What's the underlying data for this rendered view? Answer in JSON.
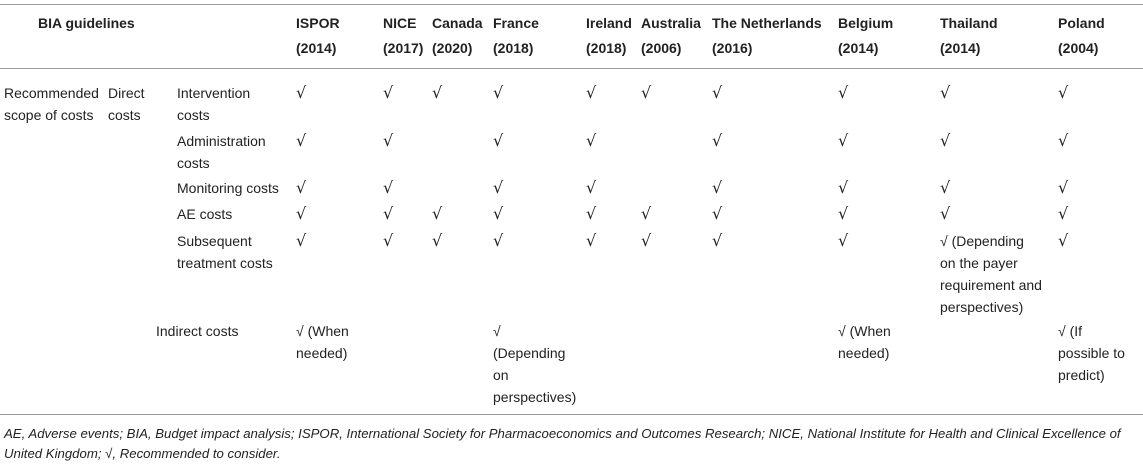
{
  "table": {
    "header": {
      "title": "BIA guidelines",
      "columns": [
        {
          "name": "ISPOR",
          "year": "(2014)"
        },
        {
          "name": "NICE",
          "year": "(2017)"
        },
        {
          "name": "Canada",
          "year": "(2020)"
        },
        {
          "name": "France",
          "year": "(2018)"
        },
        {
          "name": "Ireland",
          "year": "(2018)"
        },
        {
          "name": "Australia",
          "year": "(2006)"
        },
        {
          "name": "The Netherlands",
          "year": "(2016)"
        },
        {
          "name": "Belgium",
          "year": "(2014)"
        },
        {
          "name": "Thailand",
          "year": "(2014)"
        },
        {
          "name": "Poland",
          "year": "(2004)"
        }
      ]
    },
    "category": "Recommended\nscope of costs",
    "check_mark": "√",
    "groups": [
      {
        "label": "Direct\ncosts",
        "rows": [
          {
            "label": "Intervention\ncosts",
            "cells": [
              "√",
              "√",
              "√",
              "√",
              "√",
              "√",
              "√",
              "√",
              "√",
              "√"
            ]
          },
          {
            "label": "Administration\ncosts",
            "cells": [
              "√",
              "√",
              "",
              "√",
              "√",
              "",
              "√",
              "√",
              "√",
              "√"
            ]
          },
          {
            "label": "Monitoring costs",
            "cells": [
              "√",
              "√",
              "",
              "√",
              "√",
              "",
              "√",
              "√",
              "√",
              "√"
            ]
          },
          {
            "label": "AE costs",
            "cells": [
              "√",
              "√",
              "√",
              "√",
              "√",
              "√",
              "√",
              "√",
              "√",
              "√"
            ]
          },
          {
            "label": "Subsequent\ntreatment costs",
            "cells": [
              "√",
              "√",
              "√",
              "√",
              "√",
              "√",
              "√",
              "√",
              "√ (Depending\non the payer\nrequirement and\nperspectives)",
              "√"
            ]
          }
        ]
      },
      {
        "label": "Indirect costs",
        "rows": [
          {
            "label": "",
            "cells": [
              "√ (When\nneeded)",
              "",
              "",
              "√\n(Depending\non\nperspectives)",
              "",
              "",
              "",
              "√ (When\nneeded)",
              "",
              "√ (If\npossible to\npredict)"
            ]
          }
        ]
      }
    ]
  },
  "footnote": "AE, Adverse events; BIA, Budget impact analysis; ISPOR, International Society for Pharmacoeconomics and Outcomes Research; NICE, National Institute for Health and Clinical Excellence of United Kingdom; √, Recommended to consider."
}
